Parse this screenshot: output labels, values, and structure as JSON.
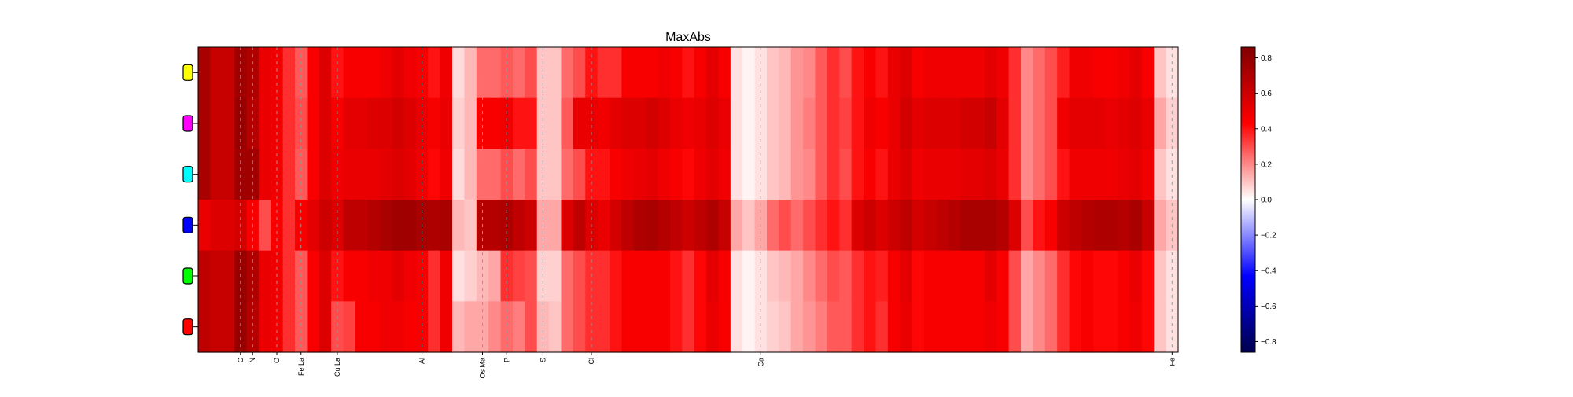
{
  "chart_data": {
    "type": "heatmap",
    "title": "MaxAbs",
    "xlabel": "",
    "ylabel": "",
    "rows": [
      {
        "marker_color": "#ffff00"
      },
      {
        "marker_color": "#ff00ff"
      },
      {
        "marker_color": "#00ffff"
      },
      {
        "marker_color": "#0000ff"
      },
      {
        "marker_color": "#00ff00"
      },
      {
        "marker_color": "#ff0000"
      }
    ],
    "x_tick_labels": [
      {
        "label": "C",
        "index": 3
      },
      {
        "label": "N",
        "index": 4
      },
      {
        "label": "O",
        "index": 6
      },
      {
        "label": "Fe La",
        "index": 8
      },
      {
        "label": "Cu La",
        "index": 11
      },
      {
        "label": "Al",
        "index": 18
      },
      {
        "label": "Os Ma",
        "index": 23
      },
      {
        "label": "P",
        "index": 25
      },
      {
        "label": "S",
        "index": 28
      },
      {
        "label": "Cl",
        "index": 32
      },
      {
        "label": "Ca",
        "index": 46
      },
      {
        "label": "Fe",
        "index": 80
      }
    ],
    "values": [
      [
        0.72,
        0.62,
        0.62,
        0.75,
        0.7,
        0.5,
        0.48,
        0.35,
        0.28,
        0.45,
        0.55,
        0.4,
        0.45,
        0.45,
        0.45,
        0.48,
        0.52,
        0.48,
        0.45,
        0.4,
        0.48,
        0.06,
        0.12,
        0.25,
        0.25,
        0.28,
        0.25,
        0.3,
        0.1,
        0.1,
        0.25,
        0.3,
        0.4,
        0.35,
        0.35,
        0.45,
        0.45,
        0.45,
        0.48,
        0.45,
        0.4,
        0.45,
        0.52,
        0.45,
        0.05,
        0.02,
        0.05,
        0.1,
        0.12,
        0.18,
        0.2,
        0.28,
        0.35,
        0.3,
        0.4,
        0.45,
        0.4,
        0.5,
        0.55,
        0.45,
        0.48,
        0.48,
        0.48,
        0.48,
        0.48,
        0.52,
        0.48,
        0.35,
        0.2,
        0.25,
        0.3,
        0.38,
        0.48,
        0.48,
        0.45,
        0.45,
        0.48,
        0.52,
        0.45,
        0.1,
        0.05
      ],
      [
        0.72,
        0.62,
        0.62,
        0.78,
        0.68,
        0.5,
        0.48,
        0.35,
        0.3,
        0.45,
        0.55,
        0.45,
        0.52,
        0.52,
        0.55,
        0.55,
        0.58,
        0.55,
        0.5,
        0.45,
        0.5,
        0.08,
        0.12,
        0.45,
        0.45,
        0.48,
        0.4,
        0.4,
        0.1,
        0.1,
        0.28,
        0.5,
        0.5,
        0.48,
        0.52,
        0.55,
        0.55,
        0.58,
        0.55,
        0.5,
        0.48,
        0.5,
        0.55,
        0.5,
        0.05,
        0.02,
        0.05,
        0.1,
        0.12,
        0.18,
        0.22,
        0.28,
        0.35,
        0.32,
        0.4,
        0.48,
        0.45,
        0.5,
        0.58,
        0.52,
        0.55,
        0.55,
        0.55,
        0.58,
        0.58,
        0.62,
        0.52,
        0.35,
        0.2,
        0.25,
        0.3,
        0.48,
        0.52,
        0.52,
        0.52,
        0.5,
        0.52,
        0.55,
        0.5,
        0.15,
        0.08
      ],
      [
        0.72,
        0.62,
        0.62,
        0.75,
        0.75,
        0.5,
        0.48,
        0.35,
        0.28,
        0.45,
        0.55,
        0.48,
        0.5,
        0.5,
        0.5,
        0.52,
        0.55,
        0.52,
        0.48,
        0.42,
        0.48,
        0.06,
        0.12,
        0.25,
        0.25,
        0.3,
        0.25,
        0.3,
        0.1,
        0.1,
        0.25,
        0.3,
        0.4,
        0.4,
        0.45,
        0.48,
        0.5,
        0.52,
        0.48,
        0.45,
        0.42,
        0.48,
        0.52,
        0.48,
        0.05,
        0.02,
        0.05,
        0.1,
        0.12,
        0.18,
        0.2,
        0.28,
        0.35,
        0.3,
        0.4,
        0.45,
        0.4,
        0.5,
        0.55,
        0.48,
        0.5,
        0.5,
        0.5,
        0.52,
        0.52,
        0.55,
        0.5,
        0.35,
        0.2,
        0.25,
        0.3,
        0.4,
        0.48,
        0.48,
        0.48,
        0.48,
        0.5,
        0.52,
        0.48,
        0.1,
        0.05
      ],
      [
        0.5,
        0.55,
        0.55,
        0.58,
        0.45,
        0.3,
        0.45,
        0.35,
        0.45,
        0.52,
        0.6,
        0.55,
        0.65,
        0.65,
        0.68,
        0.72,
        0.75,
        0.75,
        0.72,
        0.7,
        0.72,
        0.12,
        0.1,
        0.68,
        0.68,
        0.7,
        0.65,
        0.6,
        0.15,
        0.15,
        0.55,
        0.65,
        0.55,
        0.5,
        0.58,
        0.65,
        0.7,
        0.72,
        0.68,
        0.65,
        0.6,
        0.65,
        0.7,
        0.62,
        0.15,
        0.1,
        0.15,
        0.25,
        0.3,
        0.25,
        0.3,
        0.35,
        0.4,
        0.35,
        0.55,
        0.6,
        0.55,
        0.6,
        0.65,
        0.58,
        0.62,
        0.65,
        0.68,
        0.72,
        0.72,
        0.72,
        0.68,
        0.55,
        0.3,
        0.4,
        0.45,
        0.6,
        0.65,
        0.68,
        0.7,
        0.7,
        0.68,
        0.72,
        0.62,
        0.15,
        0.1
      ],
      [
        0.65,
        0.62,
        0.62,
        0.78,
        0.7,
        0.5,
        0.48,
        0.35,
        0.28,
        0.45,
        0.55,
        0.4,
        0.45,
        0.45,
        0.48,
        0.48,
        0.52,
        0.48,
        0.45,
        0.35,
        0.48,
        0.05,
        0.08,
        0.12,
        0.15,
        0.35,
        0.32,
        0.3,
        0.08,
        0.08,
        0.25,
        0.3,
        0.35,
        0.35,
        0.4,
        0.45,
        0.45,
        0.45,
        0.45,
        0.4,
        0.35,
        0.42,
        0.52,
        0.45,
        0.05,
        0.02,
        0.05,
        0.1,
        0.12,
        0.15,
        0.2,
        0.25,
        0.3,
        0.28,
        0.35,
        0.4,
        0.38,
        0.45,
        0.52,
        0.42,
        0.45,
        0.45,
        0.45,
        0.45,
        0.45,
        0.52,
        0.45,
        0.3,
        0.15,
        0.2,
        0.25,
        0.35,
        0.42,
        0.45,
        0.42,
        0.42,
        0.45,
        0.5,
        0.42,
        0.1,
        0.05
      ],
      [
        0.65,
        0.62,
        0.62,
        0.78,
        0.68,
        0.5,
        0.48,
        0.35,
        0.28,
        0.45,
        0.55,
        0.3,
        0.32,
        0.45,
        0.45,
        0.48,
        0.48,
        0.45,
        0.45,
        0.35,
        0.48,
        0.12,
        0.15,
        0.15,
        0.2,
        0.25,
        0.22,
        0.3,
        0.12,
        0.1,
        0.25,
        0.3,
        0.35,
        0.35,
        0.4,
        0.45,
        0.45,
        0.45,
        0.45,
        0.4,
        0.35,
        0.42,
        0.5,
        0.45,
        0.05,
        0.02,
        0.05,
        0.08,
        0.1,
        0.15,
        0.18,
        0.22,
        0.28,
        0.28,
        0.35,
        0.4,
        0.35,
        0.45,
        0.5,
        0.42,
        0.45,
        0.45,
        0.45,
        0.45,
        0.45,
        0.48,
        0.45,
        0.3,
        0.15,
        0.2,
        0.25,
        0.35,
        0.42,
        0.45,
        0.42,
        0.42,
        0.45,
        0.48,
        0.42,
        0.1,
        0.05
      ]
    ],
    "colorbar": {
      "colormap": "seismic",
      "vmin": -0.86,
      "vmax": 0.86,
      "ticks": [
        0.8,
        0.6,
        0.4,
        0.2,
        0.0,
        -0.2,
        -0.4,
        -0.6,
        -0.8
      ],
      "tick_labels": [
        "0.8",
        "0.6",
        "0.4",
        "0.2",
        "0.0",
        "−0.2",
        "−0.4",
        "−0.6",
        "−0.8"
      ]
    },
    "dashed_line_color": "#999999"
  }
}
